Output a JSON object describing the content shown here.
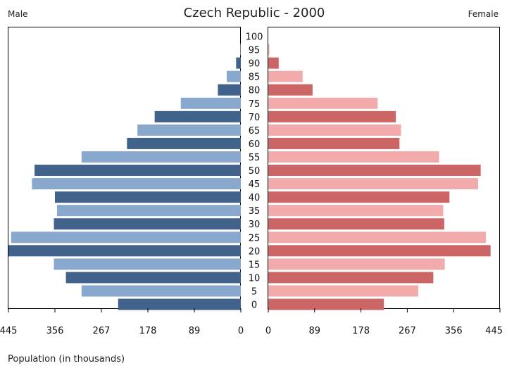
{
  "chart_data": {
    "type": "bar",
    "orientation": "horizontal",
    "layout": "population-pyramid",
    "title": "Czech Republic - 2000",
    "left_label": "Male",
    "right_label": "Female",
    "xlabel": "Population (in thousands)",
    "xlim": [
      0,
      445
    ],
    "xticks": [
      "445",
      "356",
      "267",
      "178",
      "89",
      "0"
    ],
    "xticks_right": [
      "0",
      "89",
      "178",
      "267",
      "356",
      "445"
    ],
    "categories": [
      "0",
      "5",
      "10",
      "15",
      "20",
      "25",
      "30",
      "35",
      "40",
      "45",
      "50",
      "55",
      "60",
      "65",
      "70",
      "75",
      "80",
      "85",
      "90",
      "95",
      "100"
    ],
    "series": [
      {
        "name": "Male",
        "colors": [
          "#41628a",
          "#88a8ce"
        ],
        "values": [
          235,
          305,
          335,
          358,
          450,
          440,
          358,
          352,
          356,
          400,
          395,
          305,
          218,
          198,
          165,
          115,
          44,
          27,
          9,
          1,
          0
        ]
      },
      {
        "name": "Female",
        "colors": [
          "#cc6666",
          "#f2aaaa"
        ],
        "values": [
          222,
          288,
          317,
          339,
          427,
          418,
          338,
          336,
          348,
          403,
          408,
          328,
          252,
          255,
          245,
          210,
          85,
          66,
          20,
          2,
          0
        ]
      }
    ]
  }
}
